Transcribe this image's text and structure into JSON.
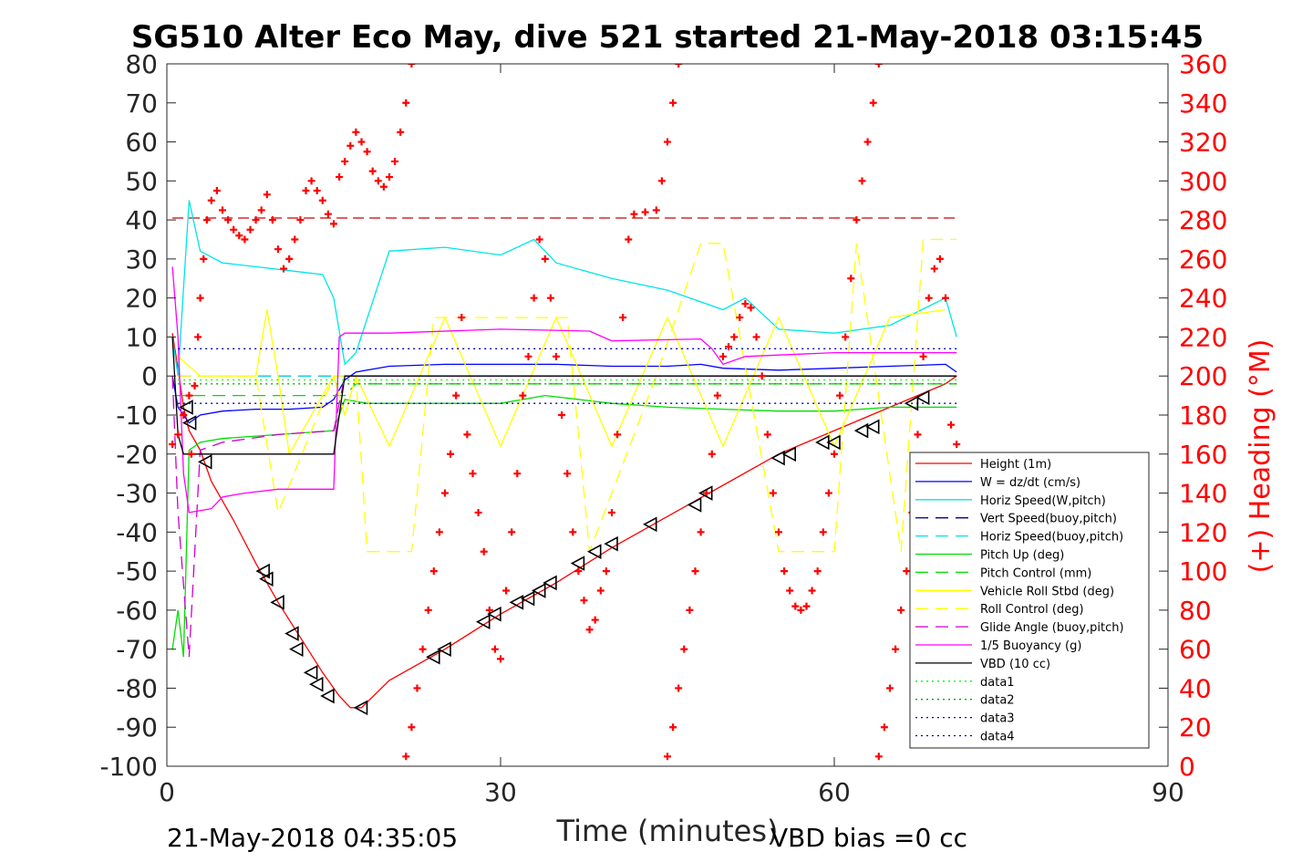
{
  "title": "SG510 Alter Eco May, dive 521 started 21-May-2018 03:15:45",
  "footer_left": "21-May-2018 04:35:05",
  "footer_right": "VBD bias =0 cc",
  "chart_data": {
    "type": "line",
    "xlabel": "Time (minutes)",
    "ylabel": "",
    "y2label": "(+) Heading (°M)",
    "xlim": [
      0,
      90
    ],
    "ylim": [
      -100,
      80
    ],
    "y2lim": [
      0,
      360
    ],
    "xticks": [
      0,
      30,
      60,
      90
    ],
    "yticks": [
      80,
      70,
      60,
      50,
      40,
      30,
      20,
      10,
      0,
      -10,
      -20,
      -30,
      -40,
      -50,
      -60,
      -70,
      -80,
      -90,
      -100
    ],
    "y2ticks": [
      360,
      340,
      320,
      300,
      280,
      260,
      240,
      220,
      200,
      180,
      160,
      140,
      120,
      100,
      80,
      60,
      40,
      20,
      0
    ],
    "grid": false,
    "legend_position": "lower-right",
    "colors": {
      "height": "#ff0000",
      "w": "#0000ff",
      "horiz_speed": "#00e5e5",
      "pitch": "#00dd00",
      "roll": "#ffff00",
      "glide": "#cc00cc",
      "buoyancy": "#ff00ff",
      "vbd": "#000000",
      "heading": "#ff0000",
      "axis_right": "#ff0000"
    },
    "series": [
      {
        "name": "Height (1m)",
        "style": "solid",
        "color": "#ff0000",
        "x": [
          0.5,
          1,
          1.5,
          2,
          3,
          4,
          6,
          8,
          10,
          12,
          14,
          15.5,
          16.5,
          17.5,
          20,
          25,
          30,
          35,
          40,
          45,
          50,
          55,
          60,
          65,
          70,
          71
        ],
        "y": [
          11,
          2,
          -8,
          -14,
          -19,
          -27,
          -37,
          -48,
          -58,
          -67,
          -76,
          -82,
          -85,
          -85,
          -78,
          -70,
          -61,
          -53,
          -44,
          -36,
          -28,
          -20,
          -14,
          -8,
          -2,
          0
        ]
      },
      {
        "name": "W = dz/dt (cm/s)",
        "style": "solid",
        "color": "#0000ff",
        "x": [
          0.5,
          1,
          2,
          3,
          5,
          8,
          11,
          14,
          15,
          16,
          17,
          20,
          25,
          30,
          35,
          40,
          45,
          48,
          50,
          55,
          60,
          65,
          70,
          71
        ],
        "y": [
          0,
          -8,
          -12,
          -10,
          -9,
          -8.5,
          -8.5,
          -8,
          -6,
          -1,
          1,
          2.5,
          3,
          3,
          3,
          2.5,
          2.5,
          3,
          2,
          1.5,
          2,
          2.5,
          3,
          1
        ]
      },
      {
        "name": "Horiz Speed(W,pitch)",
        "style": "solid",
        "color": "#00e5e5",
        "x": [
          0.5,
          1,
          2,
          3,
          5,
          8,
          11,
          14,
          15,
          16,
          17,
          20,
          25,
          30,
          33,
          35,
          40,
          45,
          50,
          52,
          55,
          60,
          65,
          70,
          71
        ],
        "y": [
          10,
          0,
          45,
          32,
          29,
          28,
          27,
          26,
          20,
          3,
          6,
          32,
          33,
          31,
          35,
          29,
          25,
          22,
          17,
          20,
          12,
          11,
          13,
          20,
          10
        ]
      },
      {
        "name": "Vert Speed(buoy,pitch)",
        "style": "dashed",
        "color": "#00008b",
        "x": [
          1,
          71
        ],
        "y": [
          0,
          0
        ]
      },
      {
        "name": "Horiz Speed(buoy,pitch)",
        "style": "dashed",
        "color": "#00e5e5",
        "x": [
          1,
          71
        ],
        "y": [
          0,
          0
        ]
      },
      {
        "name": "Pitch Up (deg)",
        "style": "solid",
        "color": "#00dd00",
        "x": [
          0.5,
          1,
          1.5,
          2,
          3,
          5,
          10,
          15,
          16,
          18,
          25,
          30,
          34,
          40,
          45,
          50,
          55,
          60,
          65,
          70,
          71
        ],
        "y": [
          -70,
          -60,
          -72,
          -19,
          -17,
          -16,
          -15,
          -14,
          -6,
          -7,
          -7,
          -7,
          -5,
          -7,
          -8,
          -8.5,
          -9,
          -9,
          -8,
          -8,
          -8
        ]
      },
      {
        "name": "Pitch Control (mm)",
        "style": "dashed",
        "color": "#00dd00",
        "x": [
          0.5,
          16,
          17,
          71
        ],
        "y": [
          -5,
          -5,
          -2,
          -2
        ]
      },
      {
        "name": "Vehicle Roll Stbd (deg)",
        "style": "solid",
        "color": "#ffff00",
        "x": [
          1,
          3,
          8,
          9,
          10,
          11,
          15,
          16,
          17,
          20,
          25,
          30,
          35,
          40,
          45,
          50,
          55,
          60,
          65,
          70
        ],
        "y": [
          5,
          0,
          0,
          17,
          0,
          -20,
          0,
          -10,
          0,
          -18,
          15,
          -18,
          15,
          -18,
          15,
          -18,
          15,
          -18,
          15,
          17
        ]
      },
      {
        "name": "Roll Control (deg)",
        "style": "dashed",
        "color": "#ffff00",
        "x": [
          1,
          3,
          8,
          10,
          15,
          17,
          18,
          22,
          24,
          27,
          32,
          36,
          38,
          44,
          48,
          50,
          55,
          60,
          62,
          66,
          68,
          71
        ],
        "y": [
          0,
          0,
          0,
          -35,
          0,
          0,
          -45,
          -45,
          15,
          15,
          15,
          15,
          -45,
          0,
          34,
          34,
          -45,
          -45,
          34,
          -45,
          35,
          35
        ]
      },
      {
        "name": "Glide Angle (buoy,pitch)",
        "style": "dashed",
        "color": "#cc00cc",
        "x": [
          0.5,
          1,
          2,
          3,
          5,
          10,
          15,
          16,
          18,
          71
        ],
        "y": [
          0,
          -35,
          -72,
          -19,
          -17,
          -15,
          -14,
          0,
          0,
          0
        ]
      },
      {
        "name": "1/5 Buoyancy (g)",
        "style": "solid",
        "color": "#ff00ff",
        "x": [
          0.5,
          1,
          1.5,
          2,
          4,
          5,
          7,
          10,
          15,
          15.5,
          16,
          20,
          30,
          38,
          40,
          48,
          49,
          50,
          52,
          60,
          71
        ],
        "y": [
          28,
          10,
          -25,
          -35,
          -34,
          -31,
          -30,
          -29,
          -29,
          10,
          11,
          11,
          12,
          11.5,
          9,
          9.5,
          7,
          3,
          5,
          6,
          6
        ]
      },
      {
        "name": "VBD (10 cc)",
        "style": "solid",
        "color": "#000000",
        "x": [
          0.5,
          1,
          1.5,
          15,
          16,
          71
        ],
        "y": [
          10,
          -15,
          -20,
          -20,
          0,
          0
        ]
      },
      {
        "name": "data1",
        "style": "dotted",
        "color": "#00ff00",
        "x": [
          1,
          71
        ],
        "y": [
          -1,
          -1
        ]
      },
      {
        "name": "data2",
        "style": "dotted",
        "color": "#00aa00",
        "x": [
          1,
          71
        ],
        "y": [
          -2,
          -2
        ]
      },
      {
        "name": "data3",
        "style": "dotted",
        "color": "#0000aa",
        "x": [
          1,
          71
        ],
        "y": [
          7,
          7
        ]
      },
      {
        "name": "data4",
        "style": "dotted",
        "color": "#0000aa",
        "x": [
          1,
          71
        ],
        "y": [
          -7,
          -7
        ]
      }
    ],
    "heading_target": 281,
    "heading_points": [
      [
        0.5,
        165
      ],
      [
        1,
        170
      ],
      [
        1.5,
        180
      ],
      [
        2,
        190
      ],
      [
        2.2,
        160
      ],
      [
        2.5,
        195
      ],
      [
        2.8,
        220
      ],
      [
        3,
        240
      ],
      [
        3.3,
        260
      ],
      [
        3.6,
        280
      ],
      [
        4,
        290
      ],
      [
        4.5,
        295
      ],
      [
        5,
        285
      ],
      [
        5.5,
        280
      ],
      [
        6,
        275
      ],
      [
        6.5,
        272
      ],
      [
        7,
        270
      ],
      [
        7.5,
        275
      ],
      [
        8,
        280
      ],
      [
        8.5,
        285
      ],
      [
        9,
        293
      ],
      [
        9.5,
        280
      ],
      [
        10,
        265
      ],
      [
        10.5,
        255
      ],
      [
        11,
        260
      ],
      [
        11.5,
        270
      ],
      [
        12,
        280
      ],
      [
        12.5,
        295
      ],
      [
        13,
        300
      ],
      [
        13.5,
        295
      ],
      [
        14,
        290
      ],
      [
        14.5,
        283
      ],
      [
        15,
        278
      ],
      [
        15.5,
        302
      ],
      [
        16,
        310
      ],
      [
        16.5,
        318
      ],
      [
        17,
        325
      ],
      [
        17.5,
        320
      ],
      [
        18,
        315
      ],
      [
        18.5,
        305
      ],
      [
        19,
        300
      ],
      [
        19.5,
        297
      ],
      [
        20,
        302
      ],
      [
        20.5,
        310
      ],
      [
        21,
        325
      ],
      [
        21.5,
        340
      ],
      [
        22,
        360
      ],
      [
        21.5,
        5
      ],
      [
        22,
        20
      ],
      [
        22.5,
        40
      ],
      [
        23,
        60
      ],
      [
        23.5,
        80
      ],
      [
        24,
        100
      ],
      [
        24.5,
        120
      ],
      [
        25,
        140
      ],
      [
        25.5,
        160
      ],
      [
        26,
        190
      ],
      [
        26.5,
        230
      ],
      [
        27,
        170
      ],
      [
        27.5,
        150
      ],
      [
        28,
        130
      ],
      [
        28.5,
        110
      ],
      [
        29,
        80
      ],
      [
        29.5,
        60
      ],
      [
        30,
        55
      ],
      [
        30.5,
        90
      ],
      [
        31,
        120
      ],
      [
        31.5,
        150
      ],
      [
        32,
        190
      ],
      [
        32.5,
        210
      ],
      [
        33,
        240
      ],
      [
        33.5,
        270
      ],
      [
        34,
        260
      ],
      [
        34.5,
        240
      ],
      [
        35,
        210
      ],
      [
        35.5,
        180
      ],
      [
        36,
        150
      ],
      [
        36.5,
        120
      ],
      [
        37,
        100
      ],
      [
        37.5,
        85
      ],
      [
        38,
        70
      ],
      [
        38.5,
        75
      ],
      [
        39,
        90
      ],
      [
        39.5,
        100
      ],
      [
        40,
        130
      ],
      [
        40.5,
        170
      ],
      [
        41,
        230
      ],
      [
        41.5,
        270
      ],
      [
        42,
        283
      ],
      [
        43,
        284
      ],
      [
        44,
        285
      ],
      [
        44.5,
        300
      ],
      [
        45,
        320
      ],
      [
        45.5,
        340
      ],
      [
        46,
        360
      ],
      [
        45,
        5
      ],
      [
        45.5,
        20
      ],
      [
        46,
        40
      ],
      [
        46.5,
        60
      ],
      [
        47,
        80
      ],
      [
        47.5,
        100
      ],
      [
        48,
        120
      ],
      [
        48.5,
        140
      ],
      [
        49,
        160
      ],
      [
        49.5,
        190
      ],
      [
        50,
        210
      ],
      [
        50.5,
        215
      ],
      [
        51,
        220
      ],
      [
        51.5,
        230
      ],
      [
        52,
        237
      ],
      [
        52.5,
        235
      ],
      [
        53,
        220
      ],
      [
        53.5,
        200
      ],
      [
        54,
        170
      ],
      [
        54.5,
        140
      ],
      [
        55,
        120
      ],
      [
        55.5,
        100
      ],
      [
        56,
        90
      ],
      [
        56.5,
        82
      ],
      [
        57,
        80
      ],
      [
        57.5,
        82
      ],
      [
        58,
        90
      ],
      [
        58.5,
        100
      ],
      [
        59,
        120
      ],
      [
        59.5,
        140
      ],
      [
        60,
        160
      ],
      [
        60.5,
        190
      ],
      [
        61,
        220
      ],
      [
        61.5,
        250
      ],
      [
        62,
        280
      ],
      [
        62.5,
        300
      ],
      [
        63,
        320
      ],
      [
        63.5,
        340
      ],
      [
        64,
        360
      ],
      [
        64,
        5
      ],
      [
        64.5,
        20
      ],
      [
        65,
        40
      ],
      [
        65.5,
        60
      ],
      [
        66,
        80
      ],
      [
        66.5,
        100
      ],
      [
        67,
        130
      ],
      [
        67.5,
        170
      ],
      [
        68,
        210
      ],
      [
        68.5,
        240
      ],
      [
        69,
        255
      ],
      [
        69.5,
        260
      ],
      [
        70,
        240
      ],
      [
        70.5,
        175
      ],
      [
        71,
        165
      ]
    ],
    "triangle_markers": [
      [
        1.8,
        -8
      ],
      [
        2.1,
        -12
      ],
      [
        3.5,
        -22
      ],
      [
        8.7,
        -50
      ],
      [
        9,
        -52
      ],
      [
        10,
        -58
      ],
      [
        11.3,
        -66
      ],
      [
        11.7,
        -70
      ],
      [
        13,
        -76
      ],
      [
        13.5,
        -79
      ],
      [
        14.5,
        -82
      ],
      [
        17.5,
        -85
      ],
      [
        24,
        -72
      ],
      [
        25,
        -70
      ],
      [
        28.5,
        -63
      ],
      [
        29.5,
        -61
      ],
      [
        31.5,
        -58
      ],
      [
        32.5,
        -57
      ],
      [
        33.5,
        -55
      ],
      [
        34.5,
        -53
      ],
      [
        37,
        -48
      ],
      [
        38.5,
        -45
      ],
      [
        40,
        -43
      ],
      [
        43.5,
        -38
      ],
      [
        47.5,
        -33
      ],
      [
        48.5,
        -30
      ],
      [
        55,
        -21
      ],
      [
        56,
        -20
      ],
      [
        59,
        -17
      ],
      [
        60,
        -17
      ],
      [
        62.5,
        -14
      ],
      [
        63.5,
        -13
      ],
      [
        67,
        -7
      ],
      [
        68,
        -5.5
      ]
    ]
  }
}
